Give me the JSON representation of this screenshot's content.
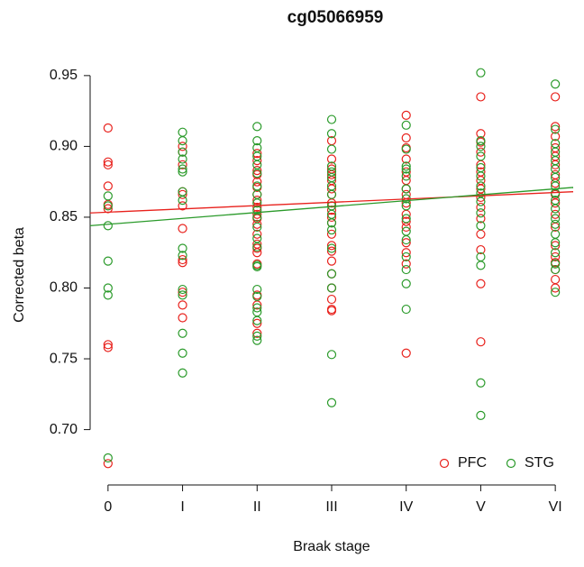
{
  "chart_data": {
    "type": "scatter",
    "title": "cg05066959",
    "xlabel": "Braak stage",
    "ylabel": "Corrected beta",
    "xlim": [
      -0.24,
      6.24
    ],
    "xticks": [
      0,
      {
        "value": 1,
        "label": "I"
      },
      {
        "value": 2,
        "label": "II"
      },
      {
        "value": 3,
        "label": "III"
      },
      {
        "value": 4,
        "label": "IV"
      },
      {
        "value": 5,
        "label": "V"
      },
      {
        "value": 6,
        "label": "VI"
      }
    ],
    "ylim": [
      0.666,
      0.962
    ],
    "yticks": [
      {
        "value": 0.7,
        "label": "0.70"
      },
      0.75,
      {
        "value": 0.8,
        "label": "0.80"
      },
      0.85,
      {
        "value": 0.9,
        "label": "0.90"
      },
      0.95
    ],
    "legend": "bottomright",
    "series": [
      {
        "name": "PFC",
        "color": "#e8211c",
        "fit": [
          0.853,
          0.868
        ],
        "x": [
          0,
          0,
          0,
          0,
          0,
          0,
          0,
          0,
          0,
          1,
          1,
          1,
          1,
          1,
          1,
          1,
          1,
          1,
          1,
          1,
          1,
          2,
          2,
          2,
          2,
          2,
          2,
          2,
          2,
          2,
          2,
          2,
          2,
          2,
          2,
          2,
          2,
          2,
          2,
          2,
          2,
          2,
          3,
          3,
          3,
          3,
          3,
          3,
          3,
          3,
          3,
          3,
          3,
          3,
          3,
          3,
          3,
          3,
          3,
          3,
          3,
          3,
          4,
          4,
          4,
          4,
          4,
          4,
          4,
          4,
          4,
          4,
          4,
          4,
          4,
          4,
          4,
          4,
          5,
          5,
          5,
          5,
          5,
          5,
          5,
          5,
          5,
          5,
          5,
          5,
          5,
          5,
          5,
          6,
          6,
          6,
          6,
          6,
          6,
          6,
          6,
          6,
          6,
          6,
          6,
          6,
          6,
          6,
          6,
          6,
          6
        ],
        "values": [
          0.913,
          0.889,
          0.887,
          0.872,
          0.859,
          0.856,
          0.76,
          0.758,
          0.676,
          0.9,
          0.896,
          0.887,
          0.868,
          0.866,
          0.858,
          0.842,
          0.82,
          0.818,
          0.797,
          0.788,
          0.779,
          0.895,
          0.89,
          0.883,
          0.88,
          0.875,
          0.871,
          0.866,
          0.862,
          0.857,
          0.852,
          0.849,
          0.845,
          0.838,
          0.831,
          0.828,
          0.825,
          0.817,
          0.795,
          0.788,
          0.775,
          0.768,
          0.904,
          0.891,
          0.884,
          0.88,
          0.876,
          0.87,
          0.866,
          0.86,
          0.855,
          0.85,
          0.846,
          0.838,
          0.83,
          0.826,
          0.819,
          0.81,
          0.8,
          0.792,
          0.785,
          0.784,
          0.922,
          0.906,
          0.899,
          0.891,
          0.882,
          0.876,
          0.87,
          0.866,
          0.86,
          0.852,
          0.847,
          0.843,
          0.832,
          0.825,
          0.817,
          0.754,
          0.935,
          0.909,
          0.903,
          0.896,
          0.887,
          0.882,
          0.876,
          0.87,
          0.864,
          0.857,
          0.849,
          0.838,
          0.827,
          0.803,
          0.762,
          0.935,
          0.914,
          0.907,
          0.899,
          0.893,
          0.887,
          0.88,
          0.874,
          0.866,
          0.86,
          0.852,
          0.843,
          0.83,
          0.822,
          0.818,
          0.813,
          0.806,
          0.8
        ]
      },
      {
        "name": "STG",
        "color": "#2a9a2a",
        "fit": [
          0.844,
          0.871
        ],
        "x": [
          0,
          0,
          0,
          0,
          0,
          0,
          0,
          1,
          1,
          1,
          1,
          1,
          1,
          1,
          1,
          1,
          1,
          1,
          1,
          1,
          1,
          1,
          2,
          2,
          2,
          2,
          2,
          2,
          2,
          2,
          2,
          2,
          2,
          2,
          2,
          2,
          2,
          2,
          2,
          2,
          2,
          2,
          2,
          2,
          2,
          3,
          3,
          3,
          3,
          3,
          3,
          3,
          3,
          3,
          3,
          3,
          3,
          3,
          3,
          3,
          3,
          3,
          4,
          4,
          4,
          4,
          4,
          4,
          4,
          4,
          4,
          4,
          4,
          4,
          4,
          4,
          4,
          5,
          5,
          5,
          5,
          5,
          5,
          5,
          5,
          5,
          5,
          5,
          5,
          5,
          5,
          5,
          6,
          6,
          6,
          6,
          6,
          6,
          6,
          6,
          6,
          6,
          6,
          6,
          6,
          6,
          6,
          6,
          6,
          6,
          6
        ],
        "values": [
          0.865,
          0.858,
          0.844,
          0.819,
          0.8,
          0.795,
          0.68,
          0.91,
          0.904,
          0.896,
          0.891,
          0.884,
          0.882,
          0.868,
          0.862,
          0.828,
          0.823,
          0.799,
          0.795,
          0.768,
          0.754,
          0.74,
          0.914,
          0.904,
          0.899,
          0.893,
          0.887,
          0.881,
          0.872,
          0.866,
          0.86,
          0.855,
          0.85,
          0.843,
          0.835,
          0.829,
          0.816,
          0.815,
          0.799,
          0.794,
          0.786,
          0.783,
          0.777,
          0.766,
          0.763,
          0.919,
          0.909,
          0.898,
          0.886,
          0.882,
          0.878,
          0.872,
          0.866,
          0.858,
          0.852,
          0.846,
          0.841,
          0.828,
          0.81,
          0.8,
          0.753,
          0.719,
          0.915,
          0.898,
          0.886,
          0.884,
          0.879,
          0.87,
          0.863,
          0.858,
          0.849,
          0.84,
          0.834,
          0.822,
          0.813,
          0.803,
          0.785,
          0.952,
          0.904,
          0.9,
          0.893,
          0.885,
          0.879,
          0.872,
          0.867,
          0.861,
          0.853,
          0.844,
          0.822,
          0.816,
          0.733,
          0.71,
          0.944,
          0.912,
          0.902,
          0.896,
          0.89,
          0.884,
          0.878,
          0.872,
          0.867,
          0.862,
          0.856,
          0.849,
          0.845,
          0.838,
          0.832,
          0.825,
          0.817,
          0.813,
          0.797
        ]
      }
    ]
  }
}
